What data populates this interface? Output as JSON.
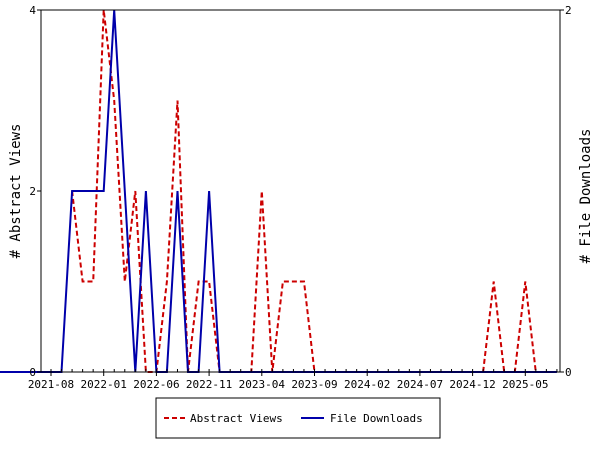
{
  "chart_data": {
    "type": "line",
    "x_tick_labels": [
      "2021-08",
      "2022-01",
      "2022-06",
      "2022-11",
      "2023-04",
      "2023-09",
      "2024-02",
      "2024-07",
      "2024-12",
      "2025-05"
    ],
    "ylabel": "# Abstract Views",
    "y2label": "# File Downloads",
    "ylim": [
      0,
      4
    ],
    "y2lim": [
      0,
      2
    ],
    "y_ticks": [
      "0",
      "2",
      "4"
    ],
    "y2_ticks": [
      "0",
      "2"
    ],
    "legend": "bottom",
    "grid": false,
    "series": [
      {
        "name": "Abstract Views",
        "axis": "left",
        "color": "#cc0000",
        "style": "dashed",
        "points": [
          [
            "2021-10",
            2
          ],
          [
            "2021-11",
            1
          ],
          [
            "2021-12",
            1
          ],
          [
            "2022-01",
            4
          ],
          [
            "2022-02",
            3
          ],
          [
            "2022-03",
            1
          ],
          [
            "2022-04",
            2
          ],
          [
            "2022-05",
            0
          ],
          [
            "2022-06",
            0
          ],
          [
            "2022-07",
            1
          ],
          [
            "2022-08",
            3
          ],
          [
            "2022-09",
            0
          ],
          [
            "2022-10",
            1
          ],
          [
            "2022-11",
            1
          ],
          [
            "2022-12",
            0
          ],
          [
            "2023-01",
            0
          ],
          [
            "2023-02",
            0
          ],
          [
            "2023-03",
            0
          ],
          [
            "2023-04",
            2
          ],
          [
            "2023-05",
            0
          ],
          [
            "2023-06",
            1
          ],
          [
            "2023-07",
            1
          ],
          [
            "2023-08",
            1
          ],
          [
            "2023-09",
            0
          ],
          [
            "2023-10",
            0
          ],
          [
            "2024-01",
            0
          ],
          [
            "2024-06",
            0
          ],
          [
            "2024-12",
            0
          ],
          [
            "2025-01",
            0
          ],
          [
            "2025-02",
            1
          ],
          [
            "2025-03",
            0
          ],
          [
            "2025-04",
            0
          ],
          [
            "2025-05",
            1
          ],
          [
            "2025-06",
            0
          ],
          [
            "2025-07",
            0
          ]
        ]
      },
      {
        "name": "File Downloads",
        "axis": "right",
        "color": "#0000aa",
        "style": "solid",
        "points": [
          [
            "2021-02",
            0
          ],
          [
            "2021-09",
            0
          ],
          [
            "2021-10",
            1
          ],
          [
            "2021-11",
            1
          ],
          [
            "2021-12",
            1
          ],
          [
            "2022-01",
            1
          ],
          [
            "2022-02",
            2
          ],
          [
            "2022-03",
            1
          ],
          [
            "2022-04",
            0
          ],
          [
            "2022-05",
            1
          ],
          [
            "2022-06",
            0
          ],
          [
            "2022-07",
            0
          ],
          [
            "2022-08",
            1
          ],
          [
            "2022-09",
            0
          ],
          [
            "2022-10",
            0
          ],
          [
            "2022-11",
            1
          ],
          [
            "2022-12",
            0
          ],
          [
            "2023-01",
            0
          ],
          [
            "2023-06",
            0
          ],
          [
            "2024-01",
            0
          ],
          [
            "2024-06",
            0
          ],
          [
            "2025-01",
            0
          ],
          [
            "2025-06",
            0
          ],
          [
            "2025-08",
            0
          ]
        ]
      }
    ]
  }
}
